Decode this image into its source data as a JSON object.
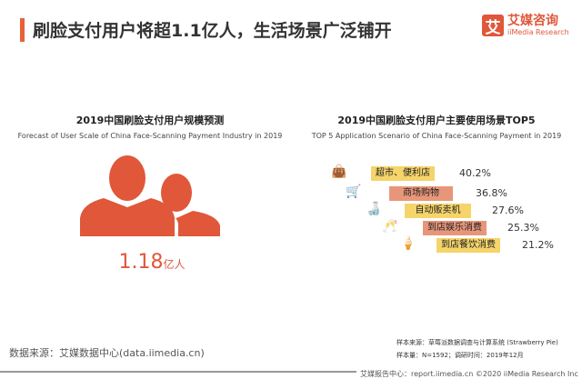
{
  "header": {
    "title": "刷脸支付用户将超1.1亿人，生活场景广泛铺开",
    "logo_mark": "艾",
    "logo_cn": "艾媒咨询",
    "logo_en": "iiMedia Research"
  },
  "left": {
    "heading": "2019中国刷脸支付用户规模预测",
    "subheading": "Forecast of User Scale of China Face-Scanning Payment Industry in 2019",
    "value": "1.18",
    "unit": "亿人",
    "icon": "users-icon"
  },
  "right": {
    "heading": "2019中国刷脸支付用户主要使用场景TOP5",
    "subheading": "TOP 5 Application Scenario of China Face-Scanning Payment in 2019",
    "items": [
      {
        "label": "超市、便利店",
        "value": "40.2%",
        "icon": "shopping-bag-icon",
        "color": "#f5d46a"
      },
      {
        "label": "商场购物",
        "value": "36.8%",
        "icon": "cart-icon",
        "color": "#e8967a"
      },
      {
        "label": "自动贩卖机",
        "value": "27.6%",
        "icon": "bottle-icon",
        "color": "#f5d46a"
      },
      {
        "label": "到店娱乐消费",
        "value": "25.3%",
        "icon": "cheers-icon",
        "color": "#e8967a"
      },
      {
        "label": "到店餐饮消费",
        "value": "21.2%",
        "icon": "ice-cream-icon",
        "color": "#f5d46a"
      }
    ]
  },
  "footer": {
    "source": "数据来源：艾媒数据中心(data.iimedia.cn)",
    "sample_source": "样本来源：草莓派数据调查与计算系统 (Strawberry Pie)",
    "sample_info": "样本量：N=1592；调研时间：2019年12月",
    "copyright": "艾媒报告中心：report.iimedia.cn  ©2020  iiMedia Research Inc"
  }
}
